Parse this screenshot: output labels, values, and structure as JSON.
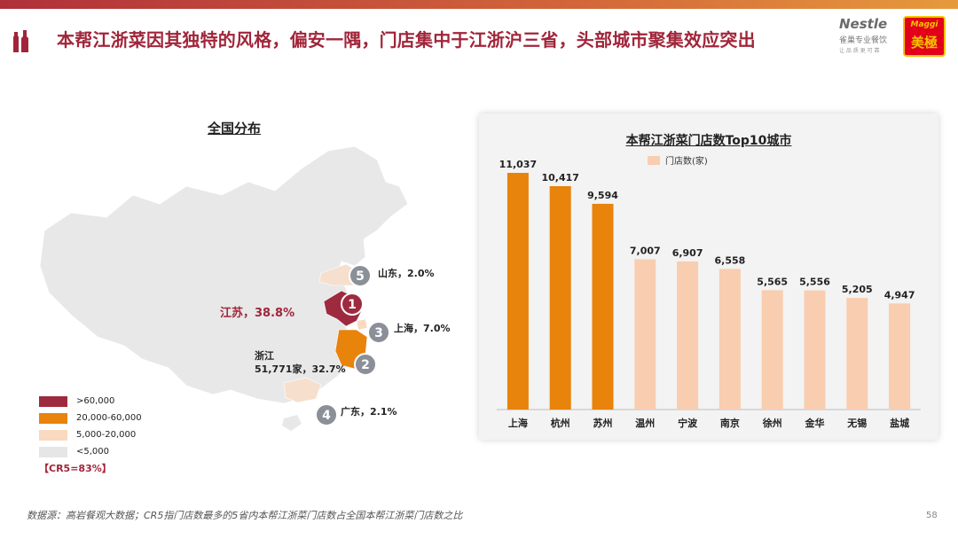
{
  "header": {
    "title": "本帮江浙菜因其独特的风格，偏安一隅，门店集中于江浙沪三省，头部城市聚集效应突出",
    "logo_nestle": "Nestle",
    "logo_nestle_sub": "雀巢专业餐饮",
    "logo_nestle_sub2": "让 品 质 更 可 靠",
    "logo_maggi_en": "Maggi",
    "logo_maggi_cn": "美極"
  },
  "map": {
    "title": "全国分布",
    "callouts": [
      {
        "rank": "1",
        "text": "江苏，38.8%"
      },
      {
        "rank": "2",
        "text_line1": "浙江",
        "text_line2": "51,771家，32.7%"
      },
      {
        "rank": "3",
        "text": "上海，7.0%"
      },
      {
        "rank": "4",
        "text": "广东，2.1%"
      },
      {
        "rank": "5",
        "text": "山东，2.0%"
      }
    ],
    "legend": [
      {
        "label": ">60,000",
        "color": "#9e2a3f"
      },
      {
        "label": "20,000-60,000",
        "color": "#e8830c"
      },
      {
        "label": "5,000-20,000",
        "color": "#f9d9bf"
      },
      {
        "label": "<5,000",
        "color": "#e6e6e6"
      }
    ],
    "cr5": "【CR5=83%】"
  },
  "chart_data": {
    "type": "bar",
    "title": "本帮江浙菜门店数Top10城市",
    "legend": "门店数(家)",
    "categories": [
      "上海",
      "杭州",
      "苏州",
      "温州",
      "宁波",
      "南京",
      "徐州",
      "金华",
      "无锡",
      "盐城"
    ],
    "values": [
      11037,
      10417,
      9594,
      7007,
      6907,
      6558,
      5565,
      5556,
      5205,
      4947
    ],
    "value_labels": [
      "11,037",
      "10,417",
      "9,594",
      "7,007",
      "6,907",
      "6,558",
      "5,565",
      "5,556",
      "5,205",
      "4,947"
    ],
    "highlight_count": 3,
    "colors": {
      "highlight": "#e8830c",
      "normal": "#f9cdb0"
    },
    "ylim": [
      0,
      11037
    ],
    "xlabel": "",
    "ylabel": ""
  },
  "footer": {
    "source": "数据源：高岩餐观大数据；CR5指门店数最多的5省内本帮江浙菜门店数占全国本帮江浙菜门店数之比",
    "page": "58"
  }
}
